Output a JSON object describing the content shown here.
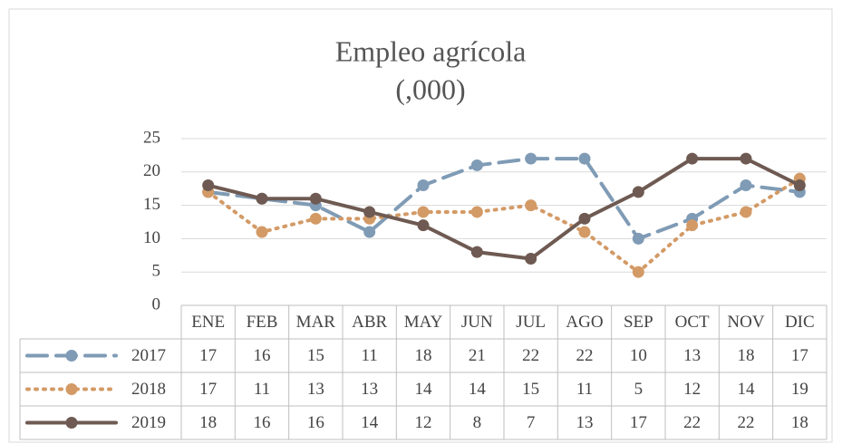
{
  "chart_data": {
    "type": "line",
    "title": "Empleo agrícola",
    "subtitle": "(,000)",
    "categories": [
      "ENE",
      "FEB",
      "MAR",
      "ABR",
      "MAY",
      "JUN",
      "JUL",
      "AGO",
      "SEP",
      "OCT",
      "NOV",
      "DIC"
    ],
    "series": [
      {
        "name": "2017",
        "color": "#7f9bb5",
        "line_style": "dashed",
        "values": [
          17,
          16,
          15,
          11,
          18,
          21,
          22,
          22,
          10,
          13,
          18,
          17
        ]
      },
      {
        "name": "2018",
        "color": "#d39a66",
        "line_style": "dotted",
        "values": [
          17,
          11,
          13,
          13,
          14,
          14,
          15,
          11,
          5,
          12,
          14,
          19
        ]
      },
      {
        "name": "2019",
        "color": "#6e5a52",
        "line_style": "solid",
        "values": [
          18,
          16,
          16,
          14,
          12,
          8,
          7,
          13,
          17,
          22,
          22,
          18
        ]
      }
    ],
    "ylim": [
      0,
      25
    ],
    "yticks": [
      0,
      5,
      10,
      15,
      20,
      25
    ],
    "grid": true,
    "data_table": true
  }
}
